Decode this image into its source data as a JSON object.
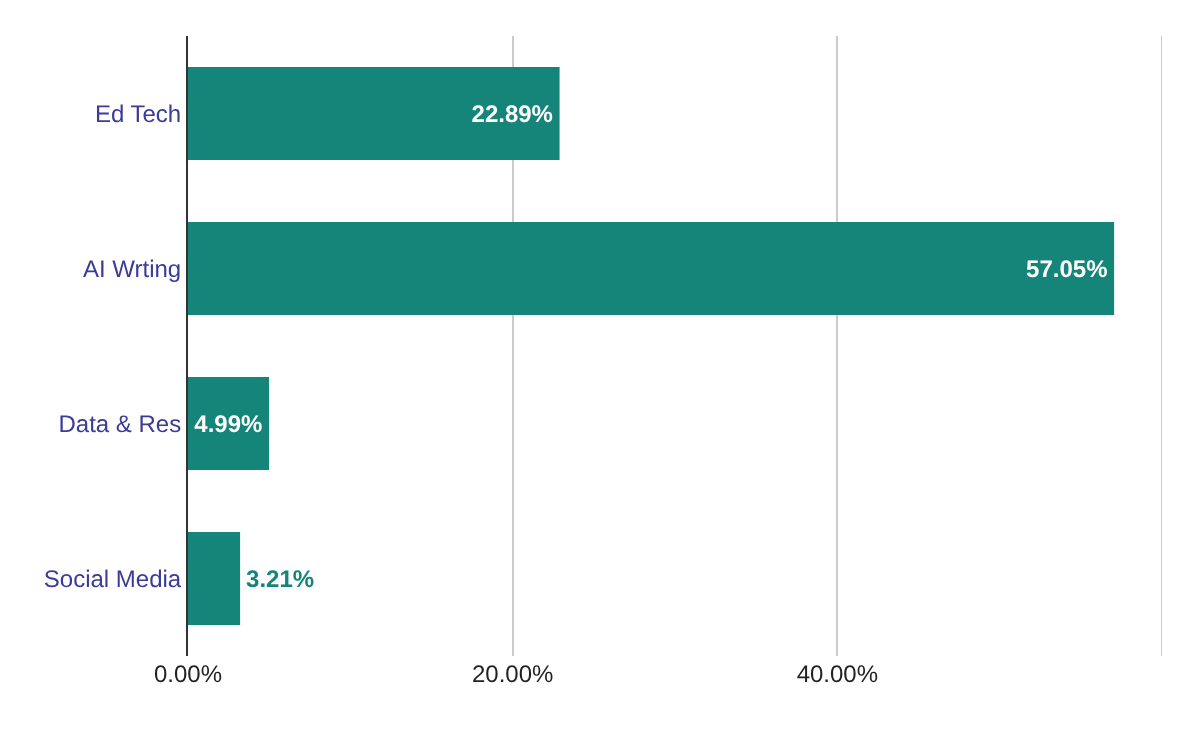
{
  "chart_data": {
    "type": "bar",
    "orientation": "horizontal",
    "categories": [
      "Ed Tech",
      "AI Wrting",
      "Data & Res",
      "Social Media"
    ],
    "values": [
      22.89,
      57.05,
      4.99,
      3.21
    ],
    "value_labels": [
      "22.89%",
      "57.05%",
      "4.99%",
      "3.21%"
    ],
    "color": "#158579",
    "xlim": [
      0,
      60
    ],
    "xticks": [
      {
        "value": 0,
        "label": "0.00%"
      },
      {
        "value": 20,
        "label": "20.00%"
      },
      {
        "value": 40,
        "label": "40.00%"
      },
      {
        "value": 60,
        "label": null
      }
    ],
    "grid": "x"
  }
}
